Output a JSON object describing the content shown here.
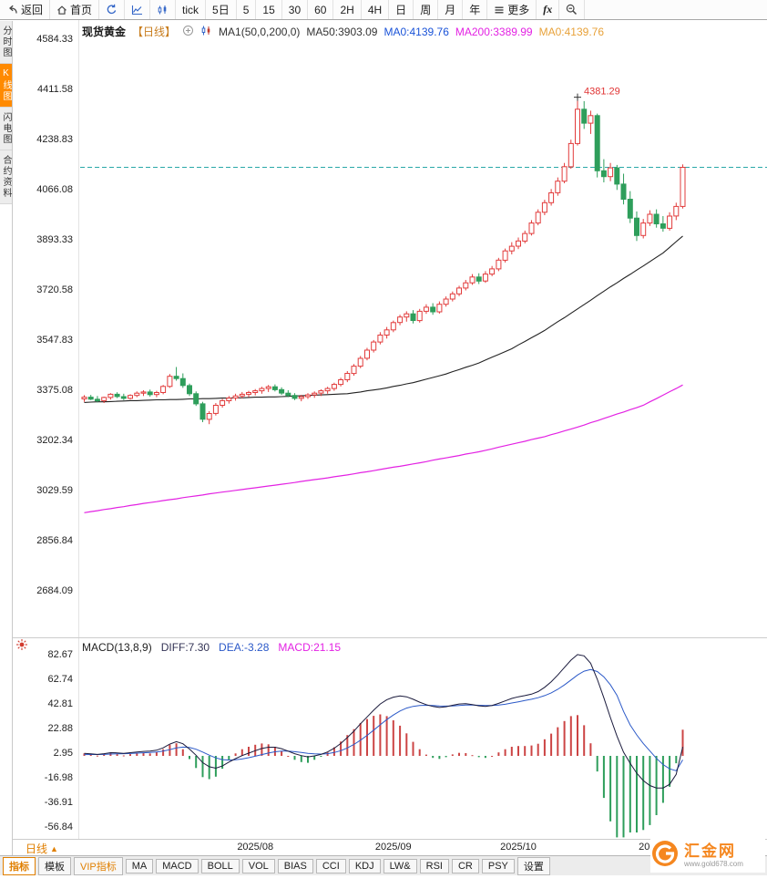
{
  "toolbar": {
    "items": [
      {
        "name": "back",
        "icon": "back-arrow-icon",
        "label": "返回"
      },
      {
        "name": "home",
        "icon": "home-icon",
        "label": "首页"
      },
      {
        "name": "refresh",
        "icon": "refresh-icon",
        "label": ""
      },
      {
        "name": "timeline-chart",
        "icon": "timeline-chart-icon",
        "label": ""
      },
      {
        "name": "kline-chart",
        "icon": "kline-chart-icon",
        "label": ""
      },
      {
        "name": "interval-tick",
        "label": "tick"
      },
      {
        "name": "interval-5d",
        "label": "5日"
      },
      {
        "name": "interval-5",
        "label": "5"
      },
      {
        "name": "interval-15",
        "label": "15"
      },
      {
        "name": "interval-30",
        "label": "30"
      },
      {
        "name": "interval-60",
        "label": "60"
      },
      {
        "name": "interval-2h",
        "label": "2H"
      },
      {
        "name": "interval-4h",
        "label": "4H"
      },
      {
        "name": "interval-day",
        "label": "日"
      },
      {
        "name": "interval-week",
        "label": "周"
      },
      {
        "name": "interval-month",
        "label": "月"
      },
      {
        "name": "interval-year",
        "label": "年"
      },
      {
        "name": "more",
        "icon": "menu-icon",
        "label": "更多"
      },
      {
        "name": "fx-formula",
        "label": "fx",
        "italic": true
      },
      {
        "name": "zoom-out",
        "icon": "zoom-out-icon",
        "label": ""
      }
    ]
  },
  "sidebar": {
    "items": [
      {
        "name": "sidebar-item-time-chart",
        "label": "分时图",
        "active": false
      },
      {
        "name": "sidebar-item-kline-chart",
        "label": "K线图",
        "active": true
      },
      {
        "name": "sidebar-item-flash-chart",
        "label": "闪电图",
        "active": false
      },
      {
        "name": "sidebar-item-contract-info",
        "label": "合约资料",
        "active": false
      }
    ]
  },
  "chart_header": {
    "symbol": "现货黄金",
    "period_tag": "【日线】",
    "ma_settings": "MA1(50,0,200,0)",
    "icons": {
      "add": "add-circle-icon",
      "indicator": "indicator-icon"
    },
    "ma_values": [
      {
        "label": "MA50:3903.09",
        "color": "#333333"
      },
      {
        "label": "MA0:4139.76",
        "color": "#1a53d8"
      },
      {
        "label": "MA200:3389.99",
        "color": "#e322e3"
      },
      {
        "label": "MA0:4139.76",
        "color": "#e8a23a"
      }
    ]
  },
  "macd_header": {
    "title": "MACD(13,8,9)",
    "values": [
      {
        "label": "DIFF:7.30",
        "color": "#333355"
      },
      {
        "label": "DEA:-3.28",
        "color": "#2b59c8"
      },
      {
        "label": "MACD:21.15",
        "color": "#e322e3"
      }
    ]
  },
  "bottom_bar": {
    "period_selector": "日线",
    "period_arrow": "▲",
    "tabs": [
      {
        "name": "tab-indicators",
        "label": "指标",
        "active": true
      },
      {
        "name": "tab-templates",
        "label": "模板"
      },
      {
        "name": "tab-vip-indicators",
        "label": "VIP指标",
        "vip": true
      },
      {
        "name": "tab-ma",
        "label": "MA"
      },
      {
        "name": "tab-macd",
        "label": "MACD"
      },
      {
        "name": "tab-boll",
        "label": "BOLL"
      },
      {
        "name": "tab-vol",
        "label": "VOL"
      },
      {
        "name": "tab-bias",
        "label": "BIAS"
      },
      {
        "name": "tab-cci",
        "label": "CCI"
      },
      {
        "name": "tab-kdj",
        "label": "KDJ"
      },
      {
        "name": "tab-lw",
        "label": "LW&"
      },
      {
        "name": "tab-rsi",
        "label": "RSI"
      },
      {
        "name": "tab-cr",
        "label": "CR"
      },
      {
        "name": "tab-psy",
        "label": "PSY"
      },
      {
        "name": "tab-settings",
        "label": "设置"
      }
    ]
  },
  "logo": {
    "brand": "汇金网",
    "site": "www.gold678.com"
  },
  "chart_data": {
    "type": "candlestick",
    "title": "现货黄金 日线",
    "y_axis_labels_main": [
      "4584.33",
      "4411.58",
      "4238.83",
      "4066.08",
      "3893.33",
      "3720.58",
      "3547.83",
      "3375.08",
      "3202.34",
      "3029.59",
      "2856.84",
      "2684.09"
    ],
    "y_axis_labels_macd": [
      "82.67",
      "62.74",
      "42.81",
      "22.88",
      "2.95",
      "-16.98",
      "-36.91",
      "-56.84"
    ],
    "x_ticks": [
      {
        "label": "2025/08",
        "index": 26
      },
      {
        "label": "2025/09",
        "index": 47
      },
      {
        "label": "2025/10",
        "index": 66
      },
      {
        "label": "2025/11",
        "index": 87
      }
    ],
    "current_price": 4139.76,
    "peak_annotation": {
      "label": "4381.29",
      "index": 75,
      "value": 4381.29
    },
    "candles": [
      [
        3342,
        3355,
        3332,
        3348
      ],
      [
        3348,
        3356,
        3338,
        3341
      ],
      [
        3341,
        3352,
        3330,
        3336
      ],
      [
        3336,
        3350,
        3328,
        3347
      ],
      [
        3347,
        3362,
        3340,
        3358
      ],
      [
        3358,
        3365,
        3345,
        3350
      ],
      [
        3350,
        3360,
        3338,
        3344
      ],
      [
        3344,
        3358,
        3340,
        3354
      ],
      [
        3354,
        3368,
        3348,
        3362
      ],
      [
        3362,
        3372,
        3352,
        3366
      ],
      [
        3366,
        3374,
        3350,
        3357
      ],
      [
        3357,
        3370,
        3348,
        3364
      ],
      [
        3364,
        3390,
        3358,
        3385
      ],
      [
        3385,
        3428,
        3380,
        3420
      ],
      [
        3420,
        3452,
        3405,
        3412
      ],
      [
        3412,
        3430,
        3380,
        3388
      ],
      [
        3388,
        3395,
        3352,
        3360
      ],
      [
        3360,
        3368,
        3318,
        3325
      ],
      [
        3325,
        3332,
        3262,
        3272
      ],
      [
        3272,
        3300,
        3255,
        3292
      ],
      [
        3292,
        3328,
        3285,
        3320
      ],
      [
        3320,
        3342,
        3312,
        3336
      ],
      [
        3336,
        3352,
        3326,
        3345
      ],
      [
        3345,
        3360,
        3336,
        3352
      ],
      [
        3352,
        3366,
        3344,
        3358
      ],
      [
        3358,
        3370,
        3348,
        3364
      ],
      [
        3364,
        3376,
        3354,
        3370
      ],
      [
        3370,
        3384,
        3360,
        3378
      ],
      [
        3378,
        3390,
        3366,
        3384
      ],
      [
        3384,
        3392,
        3368,
        3374
      ],
      [
        3374,
        3382,
        3356,
        3362
      ],
      [
        3362,
        3372,
        3348,
        3354
      ],
      [
        3354,
        3362,
        3338,
        3344
      ],
      [
        3344,
        3356,
        3334,
        3350
      ],
      [
        3350,
        3362,
        3342,
        3356
      ],
      [
        3356,
        3368,
        3346,
        3362
      ],
      [
        3362,
        3375,
        3352,
        3370
      ],
      [
        3370,
        3384,
        3360,
        3378
      ],
      [
        3378,
        3398,
        3370,
        3392
      ],
      [
        3392,
        3415,
        3385,
        3408
      ],
      [
        3408,
        3438,
        3400,
        3430
      ],
      [
        3430,
        3462,
        3422,
        3455
      ],
      [
        3455,
        3490,
        3448,
        3482
      ],
      [
        3482,
        3518,
        3475,
        3510
      ],
      [
        3510,
        3545,
        3502,
        3538
      ],
      [
        3538,
        3572,
        3530,
        3562
      ],
      [
        3562,
        3590,
        3550,
        3580
      ],
      [
        3580,
        3612,
        3572,
        3605
      ],
      [
        3605,
        3632,
        3596,
        3624
      ],
      [
        3624,
        3644,
        3608,
        3635
      ],
      [
        3635,
        3648,
        3602,
        3612
      ],
      [
        3612,
        3652,
        3605,
        3644
      ],
      [
        3644,
        3668,
        3635,
        3658
      ],
      [
        3658,
        3672,
        3632,
        3642
      ],
      [
        3642,
        3678,
        3636,
        3668
      ],
      [
        3668,
        3695,
        3660,
        3686
      ],
      [
        3686,
        3712,
        3678,
        3704
      ],
      [
        3704,
        3732,
        3696,
        3724
      ],
      [
        3724,
        3752,
        3716,
        3742
      ],
      [
        3742,
        3772,
        3735,
        3762
      ],
      [
        3762,
        3775,
        3738,
        3748
      ],
      [
        3748,
        3782,
        3742,
        3772
      ],
      [
        3772,
        3800,
        3765,
        3790
      ],
      [
        3790,
        3828,
        3782,
        3820
      ],
      [
        3820,
        3860,
        3812,
        3852
      ],
      [
        3852,
        3882,
        3840,
        3868
      ],
      [
        3868,
        3898,
        3858,
        3886
      ],
      [
        3886,
        3922,
        3878,
        3912
      ],
      [
        3912,
        3958,
        3905,
        3948
      ],
      [
        3948,
        3995,
        3940,
        3985
      ],
      [
        3985,
        4028,
        3975,
        4018
      ],
      [
        4018,
        4065,
        4008,
        4052
      ],
      [
        4052,
        4105,
        4042,
        4092
      ],
      [
        4092,
        4155,
        4085,
        4142
      ],
      [
        4142,
        4235,
        4135,
        4222
      ],
      [
        4222,
        4381.29,
        4215,
        4340
      ],
      [
        4340,
        4368,
        4272,
        4292
      ],
      [
        4292,
        4335,
        4255,
        4318
      ],
      [
        4318,
        4325,
        4105,
        4128
      ],
      [
        4128,
        4168,
        4088,
        4108
      ],
      [
        4108,
        4155,
        4092,
        4138
      ],
      [
        4138,
        4148,
        4062,
        4082
      ],
      [
        4082,
        4118,
        4012,
        4030
      ],
      [
        4030,
        4058,
        3948,
        3965
      ],
      [
        3965,
        3988,
        3886,
        3905
      ],
      [
        3905,
        3962,
        3895,
        3948
      ],
      [
        3948,
        3992,
        3938,
        3978
      ],
      [
        3978,
        3995,
        3932,
        3945
      ],
      [
        3945,
        3972,
        3918,
        3930
      ],
      [
        3930,
        3985,
        3922,
        3972
      ],
      [
        3972,
        4018,
        3958,
        4005
      ],
      [
        4005,
        4150,
        3998,
        4139.76
      ]
    ],
    "ma50": [
      3330,
      3331,
      3332,
      3332,
      3333,
      3334,
      3335,
      3336,
      3336,
      3337,
      3338,
      3339,
      3339,
      3340,
      3340,
      3341,
      3342,
      3342,
      3343,
      3343,
      3344,
      3345,
      3345,
      3346,
      3346,
      3347,
      3348,
      3348,
      3349,
      3349,
      3350,
      3351,
      3352,
      3353,
      3354,
      3355,
      3356,
      3357,
      3358,
      3359,
      3360,
      3363,
      3366,
      3370,
      3373,
      3376,
      3380,
      3385,
      3389,
      3394,
      3398,
      3404,
      3410,
      3416,
      3422,
      3428,
      3436,
      3443,
      3451,
      3458,
      3466,
      3476,
      3486,
      3495,
      3505,
      3515,
      3528,
      3540,
      3553,
      3565,
      3578,
      3593,
      3608,
      3622,
      3637,
      3652,
      3667,
      3682,
      3698,
      3713,
      3728,
      3742,
      3757,
      3771,
      3786,
      3800,
      3815,
      3830,
      3845,
      3864,
      3884,
      3903
    ],
    "ma200": [
      2950,
      2954,
      2957,
      2961,
      2964,
      2968,
      2971,
      2975,
      2978,
      2982,
      2985,
      2988,
      2992,
      2995,
      2998,
      3002,
      3005,
      3008,
      3011,
      3015,
      3018,
      3021,
      3024,
      3027,
      3030,
      3033,
      3036,
      3039,
      3042,
      3045,
      3048,
      3051,
      3054,
      3058,
      3061,
      3064,
      3067,
      3070,
      3074,
      3077,
      3080,
      3084,
      3088,
      3091,
      3095,
      3099,
      3103,
      3107,
      3110,
      3114,
      3118,
      3122,
      3126,
      3131,
      3135,
      3139,
      3143,
      3147,
      3152,
      3156,
      3160,
      3165,
      3170,
      3176,
      3181,
      3186,
      3191,
      3196,
      3202,
      3207,
      3212,
      3219,
      3225,
      3232,
      3238,
      3245,
      3252,
      3260,
      3267,
      3275,
      3282,
      3290,
      3297,
      3305,
      3312,
      3320,
      3332,
      3343,
      3355,
      3367,
      3378,
      3390
    ],
    "macd": {
      "diff": [
        2.0,
        1.6,
        1.2,
        1.8,
        2.6,
        2.4,
        2.0,
        2.6,
        3.2,
        3.6,
        3.8,
        4.6,
        6.5,
        9.5,
        11.5,
        9.8,
        5.5,
        0.5,
        -5.5,
        -8.8,
        -10.0,
        -8.2,
        -5.0,
        -2.2,
        0.2,
        2.2,
        4.2,
        6.0,
        7.0,
        7.0,
        5.8,
        3.8,
        1.8,
        0.2,
        -0.8,
        0.0,
        1.2,
        3.2,
        6.2,
        10.0,
        14.8,
        20.0,
        26.0,
        31.5,
        37.0,
        42.0,
        45.5,
        47.5,
        48.5,
        47.8,
        45.8,
        43.5,
        41.5,
        40.0,
        39.2,
        39.8,
        41.0,
        42.0,
        42.2,
        41.5,
        40.5,
        40.0,
        40.8,
        42.5,
        44.5,
        46.5,
        47.8,
        48.8,
        50.0,
        52.0,
        55.5,
        60.0,
        65.5,
        71.5,
        77.5,
        82.0,
        81.0,
        75.0,
        62.0,
        47.0,
        31.0,
        16.0,
        3.0,
        -6.0,
        -14.0,
        -20.0,
        -24.0,
        -26.0,
        -26.0,
        -23.0,
        -15.0,
        7.3
      ],
      "dea": [
        1.0,
        1.1,
        1.1,
        1.2,
        1.5,
        1.7,
        1.8,
        1.9,
        2.2,
        2.5,
        2.8,
        3.1,
        3.8,
        5.0,
        6.4,
        7.1,
        6.8,
        5.4,
        3.1,
        0.6,
        -1.6,
        -3.0,
        -3.4,
        -3.2,
        -2.5,
        -1.5,
        -0.3,
        1.0,
        2.3,
        3.3,
        3.8,
        3.8,
        3.4,
        2.7,
        2.0,
        1.6,
        1.5,
        1.8,
        2.7,
        4.2,
        6.4,
        9.2,
        12.7,
        16.6,
        20.8,
        25.2,
        29.4,
        33.1,
        36.3,
        38.7,
        40.1,
        40.8,
        41.0,
        40.8,
        40.4,
        40.3,
        40.4,
        40.8,
        41.1,
        41.2,
        41.0,
        40.8,
        40.8,
        41.1,
        41.8,
        42.8,
        43.8,
        44.8,
        45.8,
        47.1,
        48.8,
        51.0,
        53.9,
        57.4,
        61.4,
        65.5,
        68.6,
        69.9,
        68.3,
        64.0,
        57.5,
        49.0,
        36.0,
        25.0,
        17.0,
        10.0,
        4.0,
        -2.0,
        -7.0,
        -10.5,
        -12.0,
        -3.28
      ]
    },
    "colors": {
      "up": "#e23b3b",
      "down": "#2e9e5b",
      "ma50": "#222222",
      "ma200": "#e322e3",
      "diff": "#1a1a3c",
      "dea": "#2b59c8",
      "hist_up": "#cc4444",
      "hist_down": "#2e9e5b",
      "current_line": "#2aa8a8",
      "annotation": "#e03333"
    }
  }
}
